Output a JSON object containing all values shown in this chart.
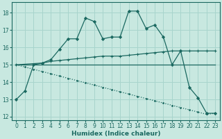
{
  "xlabel": "Humidex (Indice chaleur)",
  "bg_color": "#c8e8e0",
  "grid_color": "#a8d4cc",
  "line_color": "#1a6860",
  "xlim": [
    -0.5,
    23.5
  ],
  "ylim": [
    11.8,
    18.6
  ],
  "yticks": [
    12,
    13,
    14,
    15,
    16,
    17,
    18
  ],
  "xticks": [
    0,
    1,
    2,
    3,
    4,
    5,
    6,
    7,
    8,
    9,
    10,
    11,
    12,
    13,
    14,
    15,
    16,
    17,
    18,
    19,
    20,
    21,
    22,
    23
  ],
  "line1_x": [
    0,
    1,
    2,
    3,
    4,
    5,
    6,
    7,
    8,
    9,
    10,
    11,
    12,
    13,
    14,
    15,
    16,
    17,
    18,
    19,
    20,
    21,
    22,
    23
  ],
  "line1_y": [
    13.0,
    13.5,
    15.0,
    15.1,
    15.3,
    15.9,
    16.5,
    16.5,
    17.7,
    17.5,
    16.5,
    16.6,
    16.6,
    18.1,
    18.1,
    17.1,
    17.3,
    16.6,
    15.0,
    15.8,
    13.7,
    13.1,
    12.2,
    12.2
  ],
  "line2_x": [
    0,
    3,
    4,
    5,
    6,
    7,
    8,
    9,
    10,
    11,
    12,
    13,
    14,
    15,
    16,
    17,
    18,
    19,
    20,
    21,
    22,
    23
  ],
  "line2_y": [
    15.0,
    15.1,
    15.2,
    15.25,
    15.3,
    15.35,
    15.4,
    15.45,
    15.5,
    15.5,
    15.5,
    15.55,
    15.6,
    15.65,
    15.7,
    15.75,
    15.8,
    15.8,
    15.8,
    15.8,
    15.8,
    15.8
  ],
  "line3_x": [
    0,
    19,
    23
  ],
  "line3_y": [
    15.0,
    15.0,
    15.0
  ],
  "line4_x": [
    0,
    1,
    2,
    3,
    4,
    5,
    6,
    7,
    8,
    9,
    10,
    11,
    12,
    13,
    14,
    15,
    16,
    17,
    18,
    19,
    20,
    21,
    22,
    23
  ],
  "line4_y": [
    15.0,
    14.87,
    14.74,
    14.61,
    14.48,
    14.35,
    14.22,
    14.09,
    13.96,
    13.83,
    13.7,
    13.57,
    13.44,
    13.31,
    13.18,
    13.05,
    12.92,
    12.79,
    12.66,
    12.53,
    12.4,
    12.27,
    12.14,
    12.2
  ]
}
